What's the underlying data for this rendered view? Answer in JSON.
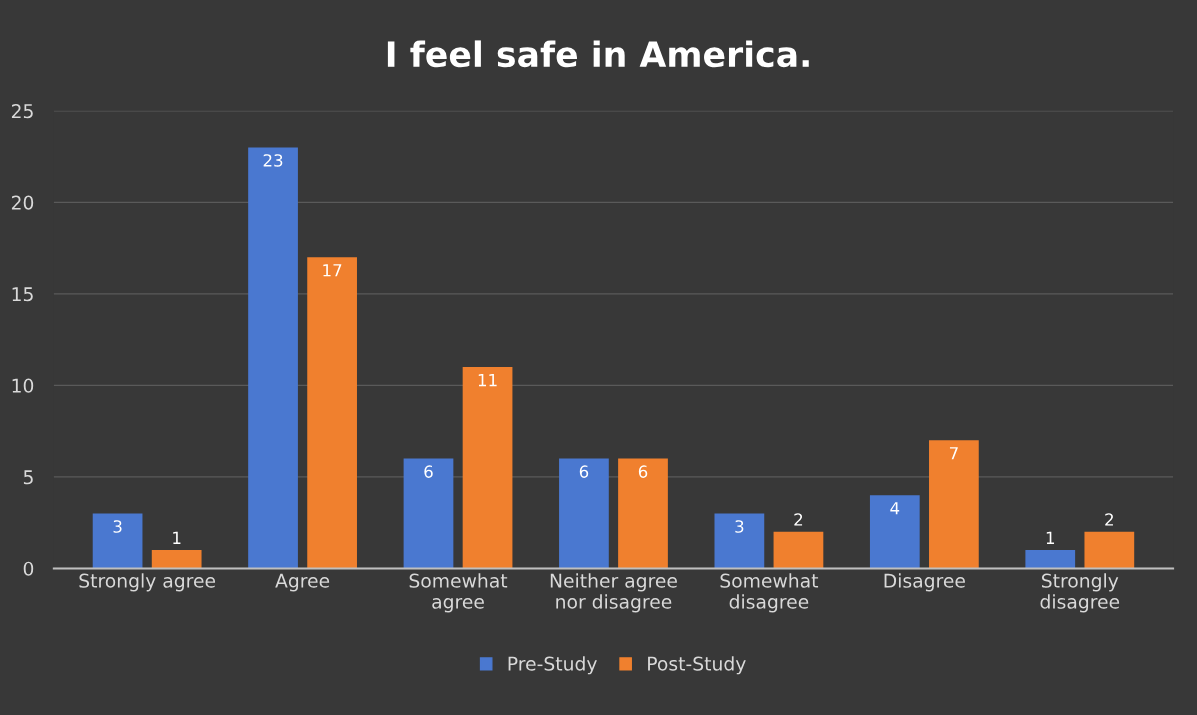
{
  "chart_data": {
    "type": "bar",
    "title": "I feel safe in America.",
    "categories": [
      "Strongly agree",
      "Agree",
      "Somewhat\nagree",
      "Neither agree\nnor disagree",
      "Somewhat\ndisagree",
      "Disagree",
      "Strongly\ndisagree"
    ],
    "series": [
      {
        "name": "Pre-Study",
        "color": "#4a78d0",
        "values": [
          3,
          23,
          6,
          6,
          3,
          4,
          1
        ]
      },
      {
        "name": "Post-Study",
        "color": "#f0802e",
        "values": [
          1,
          17,
          11,
          6,
          2,
          7,
          2
        ]
      }
    ],
    "ylim": [
      0,
      25
    ],
    "yticks": [
      0,
      5,
      10,
      15,
      20,
      25
    ],
    "grid": "y",
    "legend": "bottom",
    "data_labels": true
  }
}
